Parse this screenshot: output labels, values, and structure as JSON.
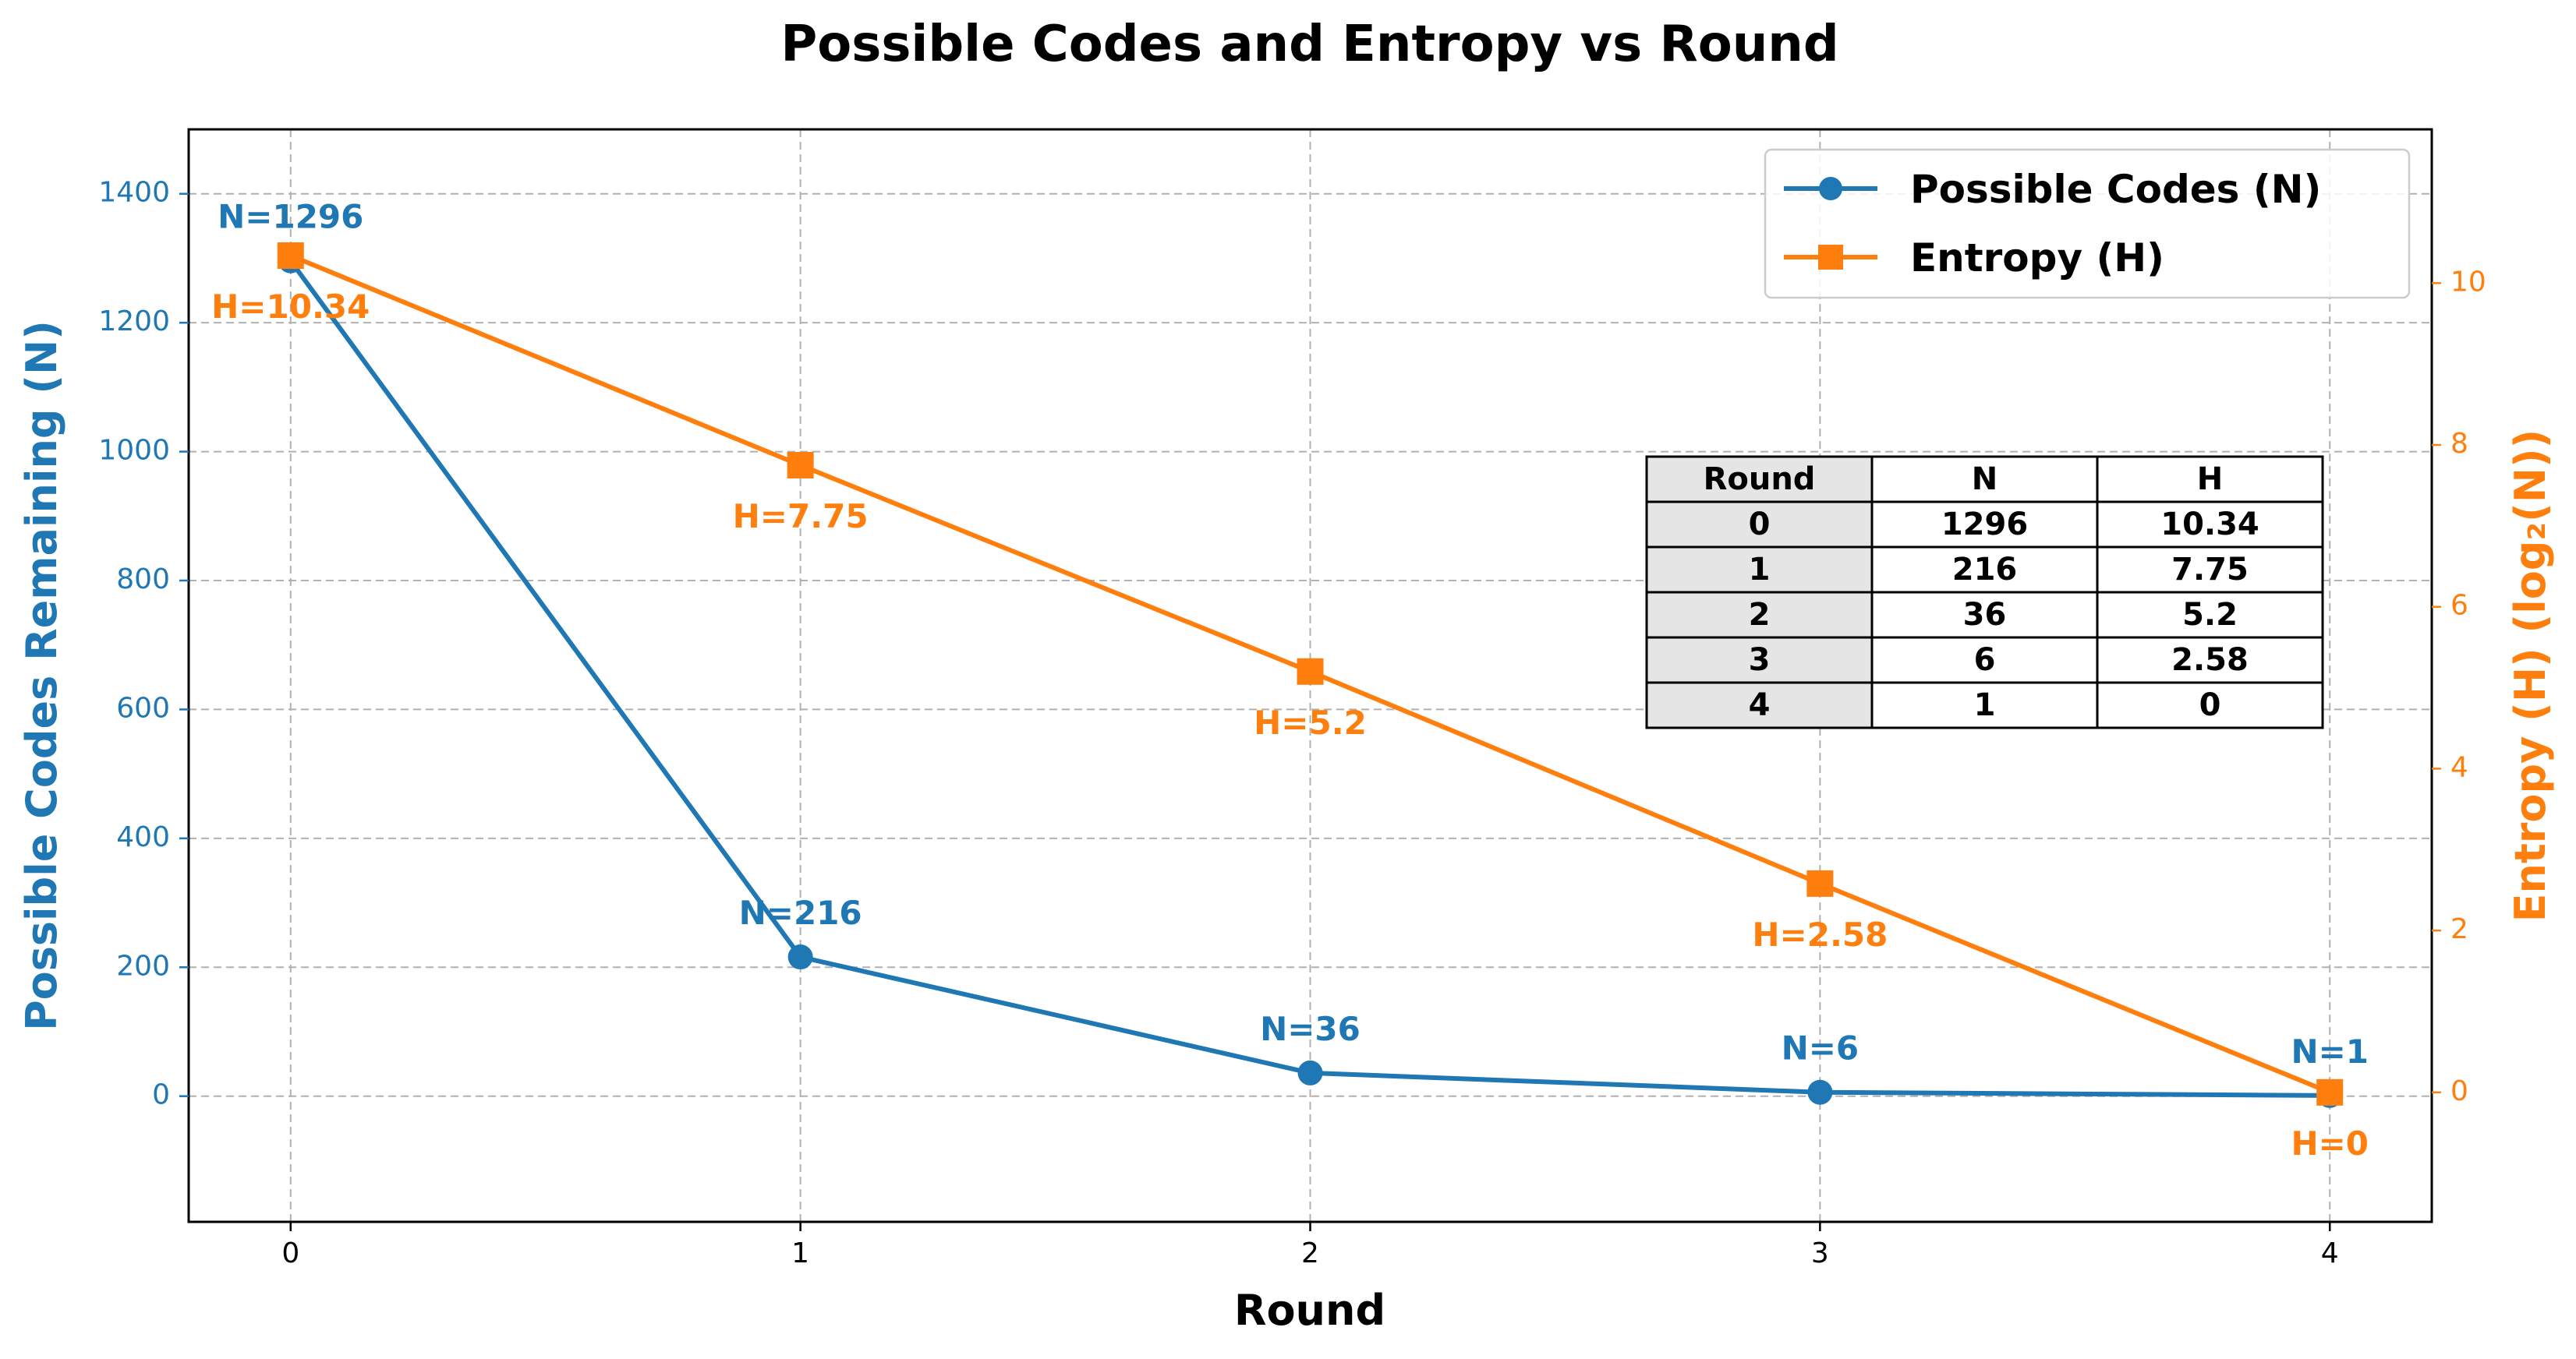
{
  "chart_data": {
    "type": "line",
    "title": "Possible Codes and Entropy vs Round",
    "xlabel": "Round",
    "ylabel_left": "Possible Codes Remaining (N)",
    "ylabel_right": "Entropy (H) (log₂(N))",
    "x": [
      0,
      1,
      2,
      3,
      4
    ],
    "xlim": [
      -0.2,
      4.2
    ],
    "ylim_left": [
      -195,
      1500
    ],
    "ylim_right": [
      -1.6,
      11.9
    ],
    "x_ticks": [
      "0",
      "1",
      "2",
      "3",
      "4"
    ],
    "y_left_ticks": [
      "0",
      "200",
      "400",
      "600",
      "800",
      "1000",
      "1200",
      "1400"
    ],
    "y_right_ticks": [
      "0",
      "2",
      "4",
      "6",
      "8",
      "10"
    ],
    "grid": true,
    "legend_position": "top-right",
    "series": [
      {
        "name": "Possible Codes (N)",
        "axis": "left",
        "color": "#1f77b4",
        "marker": "circle",
        "values": [
          1296,
          216,
          36,
          6,
          1
        ],
        "labels": [
          "N=1296",
          "N=216",
          "N=36",
          "N=6",
          "N=1"
        ]
      },
      {
        "name": "Entropy (H)",
        "axis": "right",
        "color": "#ff7f0e",
        "marker": "square",
        "values": [
          10.34,
          7.75,
          5.2,
          2.58,
          0
        ],
        "labels": [
          "H=10.34",
          "H=7.75",
          "H=5.2",
          "H=2.58",
          "H=0"
        ]
      }
    ],
    "table": {
      "columns": [
        "Round",
        "N",
        "H"
      ],
      "rows": [
        [
          "0",
          "1296",
          "10.34"
        ],
        [
          "1",
          "216",
          "7.75"
        ],
        [
          "2",
          "36",
          "5.2"
        ],
        [
          "3",
          "6",
          "2.58"
        ],
        [
          "4",
          "1",
          "0"
        ]
      ]
    }
  }
}
